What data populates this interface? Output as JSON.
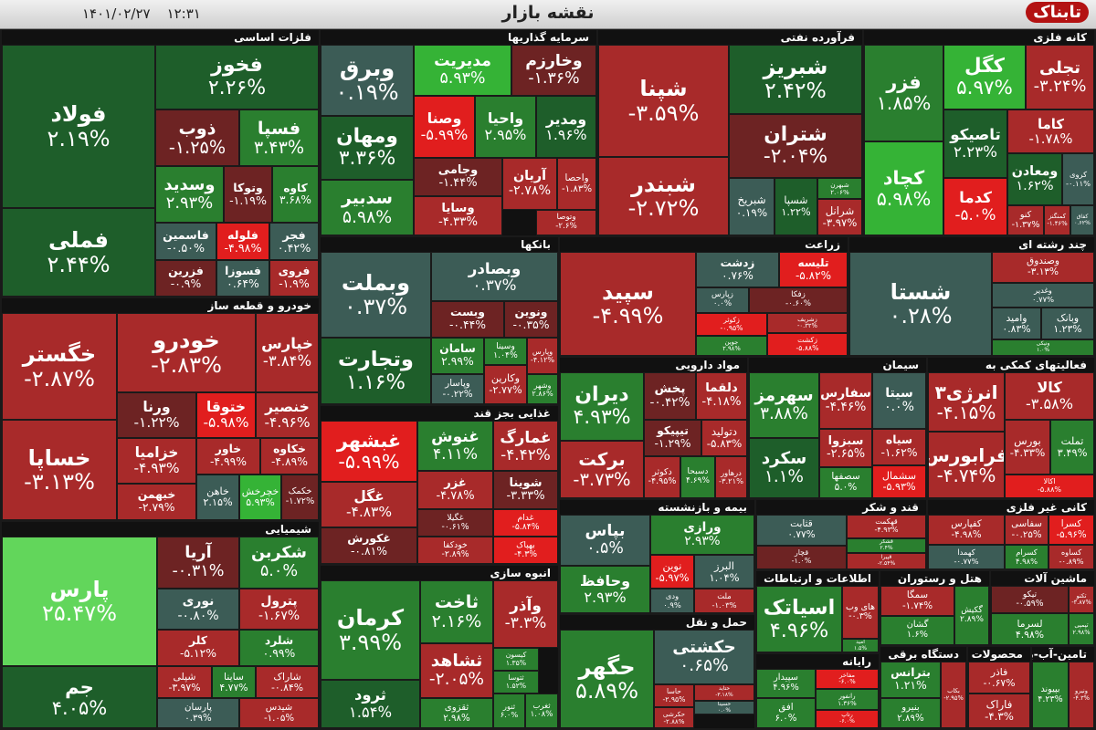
{
  "header": {
    "title": "نقشه بازار",
    "time": "۱۲:۳۱",
    "date": "۱۴۰۱/۰۲/۲۷",
    "logo": "تابناک"
  },
  "sectors": [
    {
      "name": "فلزات اساسی",
      "tiles": [
        {
          "symbol": "فولاد",
          "change": "۲.۱۹%"
        },
        {
          "symbol": "فملی",
          "change": "۲.۴۴%"
        },
        {
          "symbol": "فخوز",
          "change": "۲.۲۶%"
        },
        {
          "symbol": "ذوب",
          "change": "-۱.۲۵%"
        },
        {
          "symbol": "فسپا",
          "change": "۳.۴۳%"
        },
        {
          "symbol": "وسدید",
          "change": "۲.۹۳%"
        },
        {
          "symbol": "وتوکا",
          "change": "-۱.۱۹%"
        },
        {
          "symbol": "کاوه",
          "change": "۳.۶۸%"
        },
        {
          "symbol": "فاسمین",
          "change": "-۰.۵۰%"
        },
        {
          "symbol": "فلوله",
          "change": "-۴.۹۸%"
        },
        {
          "symbol": "فجر",
          "change": "۰.۴۲%"
        },
        {
          "symbol": "فزرین",
          "change": "-۰.۹%"
        },
        {
          "symbol": "فسوزا",
          "change": "۰.۶۴%"
        },
        {
          "symbol": "فروی",
          "change": "-۱.۹%"
        }
      ]
    },
    {
      "name": "خودرو و قطعه ساز",
      "tiles": [
        {
          "symbol": "خگستر",
          "change": "-۲.۸۷%"
        },
        {
          "symbol": "خساپا",
          "change": "-۳.۱۳%"
        },
        {
          "symbol": "خودرو",
          "change": "-۲.۸۳%"
        },
        {
          "symbol": "خپارس",
          "change": "-۳.۸۴%"
        },
        {
          "symbol": "ورنا",
          "change": "-۱.۲۲%"
        },
        {
          "symbol": "ختوقا",
          "change": "-۵.۹۸%"
        },
        {
          "symbol": "خنصیر",
          "change": "-۴.۹۶%"
        },
        {
          "symbol": "خزامیا",
          "change": "-۴.۹۳%"
        },
        {
          "symbol": "خاور",
          "change": "-۴.۹۹%"
        },
        {
          "symbol": "خکاوه",
          "change": "-۴.۸۹%"
        },
        {
          "symbol": "خبهمن",
          "change": "-۲.۷۹%"
        },
        {
          "symbol": "خاهن",
          "change": "۲.۱۵%"
        },
        {
          "symbol": "خچرخش",
          "change": "۵.۹۳%"
        },
        {
          "symbol": "خکمک",
          "change": "-۱.۷۲%"
        }
      ]
    },
    {
      "name": "شیمیایی",
      "tiles": [
        {
          "symbol": "پارس",
          "change": "۲۵.۴۷%"
        },
        {
          "symbol": "جم",
          "change": "۴.۰۵%"
        },
        {
          "symbol": "آریا",
          "change": "-۰.۳۱%"
        },
        {
          "symbol": "شکربن",
          "change": "۵.۰%"
        },
        {
          "symbol": "نوری",
          "change": "-۰.۸۰%"
        },
        {
          "symbol": "پترول",
          "change": "-۱.۶۷%"
        },
        {
          "symbol": "کلر",
          "change": "-۵.۱۲%"
        },
        {
          "symbol": "شلرد",
          "change": "۰.۹۹%"
        },
        {
          "symbol": "شپلی",
          "change": "-۳.۹۷%"
        },
        {
          "symbol": "ساینا",
          "change": "۴.۷۷%"
        },
        {
          "symbol": "شاراک",
          "change": "-۰.۸۴%"
        },
        {
          "symbol": "پارسان",
          "change": "۰.۳۹%"
        },
        {
          "symbol": "شیدس",
          "change": "-۱.۰۵%"
        }
      ]
    },
    {
      "name": "سرمایه گذاریها",
      "tiles": [
        {
          "symbol": "وبرق",
          "change": "۰.۱۹%"
        },
        {
          "symbol": "ومهان",
          "change": "۳.۳۶%"
        },
        {
          "symbol": "سدبیر",
          "change": "۵.۹۸%"
        },
        {
          "symbol": "مدیریت",
          "change": "۵.۹۳%"
        },
        {
          "symbol": "وخارزم",
          "change": "-۱.۳۶%"
        },
        {
          "symbol": "وصنا",
          "change": "-۵.۹۹%"
        },
        {
          "symbol": "واحیا",
          "change": "۲.۹۵%"
        },
        {
          "symbol": "ومدیر",
          "change": "۱.۹۶%"
        },
        {
          "symbol": "وجامی",
          "change": "-۱.۴۴%"
        },
        {
          "symbol": "آریان",
          "change": "-۲.۷۸%"
        },
        {
          "symbol": "واحصا",
          "change": "-۱.۸۳%"
        },
        {
          "symbol": "وسایا",
          "change": "-۴.۳۳%"
        },
        {
          "symbol": "وتوصا",
          "change": "-۲.۶%"
        }
      ]
    },
    {
      "name": "فرآورده نفتی",
      "tiles": [
        {
          "symbol": "شپنا",
          "change": "-۳.۵۹%"
        },
        {
          "symbol": "شبندر",
          "change": "-۲.۷۲%"
        },
        {
          "symbol": "شبریز",
          "change": "۲.۴۲%"
        },
        {
          "symbol": "شتران",
          "change": "-۲.۰۴%"
        },
        {
          "symbol": "شبریخ",
          "change": "۰.۱۹%"
        },
        {
          "symbol": "شسپا",
          "change": "۱.۲۲%"
        },
        {
          "symbol": "شبهرن",
          "change": "۲.۰۶%"
        },
        {
          "symbol": "شرانل",
          "change": "-۳.۹۷%"
        }
      ]
    },
    {
      "name": "کانه فلزی",
      "tiles": [
        {
          "symbol": "فزر",
          "change": "۱.۸۵%"
        },
        {
          "symbol": "کچاد",
          "change": "۵.۹۸%"
        },
        {
          "symbol": "کگل",
          "change": "۵.۹۷%"
        },
        {
          "symbol": "تجلی",
          "change": "-۳.۲۴%"
        },
        {
          "symbol": "تاصیکو",
          "change": "۲.۲۳%"
        },
        {
          "symbol": "کاما",
          "change": "-۱.۷۸%"
        },
        {
          "symbol": "ومعادن",
          "change": "۱.۶۲%"
        },
        {
          "symbol": "کروی",
          "change": "-۰.۱۱%"
        },
        {
          "symbol": "کدما",
          "change": "-۵.۰%"
        },
        {
          "symbol": "کنو",
          "change": "-۱.۳۷%"
        },
        {
          "symbol": "کمنگنز",
          "change": "-۱.۴۶%"
        },
        {
          "symbol": "کفاق",
          "change": "۰.۶۲%"
        }
      ]
    },
    {
      "name": "بانکها",
      "tiles": [
        {
          "symbol": "وبملت",
          "change": "۰.۳۷%"
        },
        {
          "symbol": "وتجارت",
          "change": "۱.۱۶%"
        },
        {
          "symbol": "وبصادر",
          "change": "۰.۳۷%"
        },
        {
          "symbol": "وبست",
          "change": "-۰.۴۴%"
        },
        {
          "symbol": "ونوین",
          "change": "-۰.۳۵%"
        },
        {
          "symbol": "سامان",
          "change": "۲.۹۹%"
        },
        {
          "symbol": "وسینا",
          "change": "۱.۰۴%"
        },
        {
          "symbol": "وپارس",
          "change": "-۴.۱۲%"
        },
        {
          "symbol": "وپاسار",
          "change": "-۰.۲۲%"
        },
        {
          "symbol": "وکارین",
          "change": "-۲.۷۷%"
        },
        {
          "symbol": "وشهر",
          "change": "۲.۸۶%"
        }
      ]
    },
    {
      "name": "زراعت",
      "tiles": [
        {
          "symbol": "سپید",
          "change": "-۴.۹۹%"
        },
        {
          "symbol": "زدشت",
          "change": "۰.۷۶%"
        },
        {
          "symbol": "تلیسه",
          "change": "-۵.۸۲%"
        },
        {
          "symbol": "زپارس",
          "change": "۰.۰%"
        },
        {
          "symbol": "زفکا",
          "change": "-۰.۶۰%"
        },
        {
          "symbol": "زکوثر",
          "change": "-۰.۹۵%"
        },
        {
          "symbol": "جوین",
          "change": "۲.۹۸%"
        },
        {
          "symbol": "زشریف",
          "change": "-۰.۳۲%"
        },
        {
          "symbol": "زکشت",
          "change": "-۵.۸۸%"
        }
      ]
    },
    {
      "name": "چند رشته ای",
      "tiles": [
        {
          "symbol": "شستا",
          "change": "۰.۲۸%"
        },
        {
          "symbol": "وصندوق",
          "change": "-۳.۱۳%"
        },
        {
          "symbol": "وغدیر",
          "change": "۰.۷۷%"
        },
        {
          "symbol": "وامید",
          "change": "۰.۸۳%"
        },
        {
          "symbol": "وبانک",
          "change": "۱.۲۳%"
        },
        {
          "symbol": "ونیکی",
          "change": "۱.۰%"
        }
      ]
    },
    {
      "name": "مواد دارویی",
      "tiles": [
        {
          "symbol": "دیران",
          "change": "۴.۹۳%"
        },
        {
          "symbol": "برکت",
          "change": "-۳.۷۳%"
        },
        {
          "symbol": "پخش",
          "change": "-۰.۴۲%"
        },
        {
          "symbol": "دلقما",
          "change": "-۴.۱۸%"
        },
        {
          "symbol": "تیپیکو",
          "change": "-۱.۲۹%"
        },
        {
          "symbol": "دتولید",
          "change": "-۵.۸۳%"
        },
        {
          "symbol": "دکوثر",
          "change": "-۴.۹۵%"
        },
        {
          "symbol": "دسبحا",
          "change": "۴.۶۹%"
        },
        {
          "symbol": "درهاور",
          "change": "-۳.۲۱%"
        }
      ]
    },
    {
      "name": "سیمان",
      "tiles": [
        {
          "symbol": "سهرمز",
          "change": "۳.۸۸%"
        },
        {
          "symbol": "سکرد",
          "change": "۱.۱%"
        },
        {
          "symbol": "سفارس",
          "change": "-۴.۴۶%"
        },
        {
          "symbol": "سیتا",
          "change": "۰.۰%"
        },
        {
          "symbol": "سبزوا",
          "change": "-۲.۶۵%"
        },
        {
          "symbol": "سیاه",
          "change": "-۱.۶۲%"
        },
        {
          "symbol": "سصفها",
          "change": "۵.۰%"
        },
        {
          "symbol": "سشمال",
          "change": "-۵.۹۳%"
        }
      ]
    },
    {
      "name": "فعالیتهای کمکی به",
      "tiles": [
        {
          "symbol": "انرژی۳",
          "change": "-۴.۱۵%"
        },
        {
          "symbol": "کالا",
          "change": "-۳.۵۸%"
        },
        {
          "symbol": "فرابورس",
          "change": "-۴.۷۴%"
        },
        {
          "symbol": "بورس",
          "change": "-۴.۳۳%"
        },
        {
          "symbol": "تملت",
          "change": "۳.۴۹%"
        },
        {
          "symbol": "اکالا",
          "change": "-۵.۸۸%"
        }
      ]
    },
    {
      "name": "غذایی بجز قند",
      "tiles": [
        {
          "symbol": "غبشهر",
          "change": "-۵.۹۹%"
        },
        {
          "symbol": "غگل",
          "change": "-۴.۸۳%"
        },
        {
          "symbol": "غکورش",
          "change": "-۰.۸۱%"
        },
        {
          "symbol": "غنوش",
          "change": "۴.۱۱%"
        },
        {
          "symbol": "غمارگ",
          "change": "-۴.۴۲%"
        },
        {
          "symbol": "غزر",
          "change": "-۴.۷۸%"
        },
        {
          "symbol": "شوینا",
          "change": "-۳.۳۳%"
        },
        {
          "symbol": "غگیلا",
          "change": "-۰.۶۱%"
        },
        {
          "symbol": "غدام",
          "change": "-۵.۸۴%"
        },
        {
          "symbol": "خودکفا",
          "change": "-۲.۸۹%"
        },
        {
          "symbol": "بهپاک",
          "change": "-۴.۳%"
        }
      ]
    },
    {
      "name": "انبوه سازی",
      "tiles": [
        {
          "symbol": "کرمان",
          "change": "۳.۹۹%"
        },
        {
          "symbol": "ثرود",
          "change": "۱.۵۴%"
        },
        {
          "symbol": "ثاخت",
          "change": "۲.۱۶%"
        },
        {
          "symbol": "وآذر",
          "change": "-۳.۳%"
        },
        {
          "symbol": "ثشاهد",
          "change": "-۲.۰۵%"
        },
        {
          "symbol": "کیسون",
          "change": "۱.۳۵%"
        },
        {
          "symbol": "ثتوسا",
          "change": "۱.۵۲%"
        },
        {
          "symbol": "ثقزوی",
          "change": "۲.۹۸%"
        },
        {
          "symbol": "ثنور",
          "change": "۶.۰%"
        },
        {
          "symbol": "ثغرب",
          "change": "۱.۰۸%"
        }
      ]
    },
    {
      "name": "بیمه و بازنشسته",
      "tiles": [
        {
          "symbol": "بپاس",
          "change": "۰.۵%"
        },
        {
          "symbol": "وحافظ",
          "change": "۲.۹۳%"
        },
        {
          "symbol": "ورازی",
          "change": "۲.۹۳%"
        },
        {
          "symbol": "نوین",
          "change": "-۵.۹۷%"
        },
        {
          "symbol": "البرز",
          "change": "۱.۰۴%"
        },
        {
          "symbol": "ودی",
          "change": "۰.۹%"
        },
        {
          "symbol": "ملت",
          "change": "-۱.۰۳%"
        }
      ]
    },
    {
      "name": "حمل و نقل",
      "tiles": [
        {
          "symbol": "حگهر",
          "change": "۵.۸۹%"
        },
        {
          "symbol": "حکشتی",
          "change": "۰.۶۵%"
        },
        {
          "symbol": "حاسا",
          "change": "-۲.۹۵%"
        },
        {
          "symbol": "حتاید",
          "change": "-۳.۱۸%"
        },
        {
          "symbol": "حسینا",
          "change": "۰.۰%"
        },
        {
          "symbol": "حکرشی",
          "change": "-۲.۸۸%"
        }
      ]
    },
    {
      "name": "قند و شکر",
      "tiles": [
        {
          "symbol": "قثابت",
          "change": "۰.۷۷%"
        },
        {
          "symbol": "قچار",
          "change": "-۱.۰%"
        },
        {
          "symbol": "قهکمت",
          "change": "-۴.۹۳%"
        },
        {
          "symbol": "قشکر",
          "change": "۲.۴%"
        },
        {
          "symbol": "قپیرا",
          "change": "-۲.۵۴%"
        }
      ]
    },
    {
      "name": "کانی غیر فلزی",
      "tiles": [
        {
          "symbol": "کفپارس",
          "change": "-۴.۹۸%"
        },
        {
          "symbol": "سفاسی",
          "change": "-۰.۲۵%"
        },
        {
          "symbol": "کسرا",
          "change": "-۵.۹۶%"
        },
        {
          "symbol": "کهمدا",
          "change": "-۰.۷۷%"
        },
        {
          "symbol": "کسرام",
          "change": "۴.۹۸%"
        },
        {
          "symbol": "کساوه",
          "change": "-۰.۸۹%"
        }
      ]
    },
    {
      "name": "اطلاعات و ارتباطات",
      "tiles": [
        {
          "symbol": "اسیاتک",
          "change": "۴.۹۶%"
        },
        {
          "symbol": "های وب",
          "change": "-۰.۳%"
        },
        {
          "symbol": "امید",
          "change": "۱.۵%"
        }
      ]
    },
    {
      "name": "رایانه",
      "tiles": [
        {
          "symbol": "سپیدار",
          "change": "۴.۹۶%"
        },
        {
          "symbol": "مفاخر",
          "change": "-۶.۰%"
        },
        {
          "symbol": "افق",
          "change": "۶.۰%"
        },
        {
          "symbol": "رانفور",
          "change": "۱.۳۶%"
        },
        {
          "symbol": "رتاپ",
          "change": "-۶.۰%"
        }
      ]
    },
    {
      "name": "هتل و رستوران",
      "tiles": [
        {
          "symbol": "سمگا",
          "change": "-۱.۷۴%"
        },
        {
          "symbol": "گکیش",
          "change": "۲.۸۹%"
        },
        {
          "symbol": "گشان",
          "change": "۱.۶%"
        }
      ]
    },
    {
      "name": "ماشین آلات",
      "tiles": [
        {
          "symbol": "تیکو",
          "change": "-۰.۵۹%"
        },
        {
          "symbol": "تکنو",
          "change": "-۳.۸۷%"
        },
        {
          "symbol": "لسرما",
          "change": "۴.۹۸%"
        },
        {
          "symbol": "تپمپی",
          "change": "۲.۹۸%"
        }
      ]
    },
    {
      "name": "دستگاه برقی",
      "tiles": [
        {
          "symbol": "بترانس",
          "change": "۱.۲۱%"
        },
        {
          "symbol": "بنیرو",
          "change": "۲.۸۹%"
        },
        {
          "symbol": "بکاب",
          "change": "-۲.۹۵%"
        }
      ]
    },
    {
      "name": "محصولات فلزی",
      "tiles": [
        {
          "symbol": "فاذر",
          "change": "-۰.۶۷%"
        },
        {
          "symbol": "فاراک",
          "change": "-۴.۳%"
        }
      ]
    },
    {
      "name": "تامین-آب-برق-گاز",
      "tiles": [
        {
          "symbol": "بپیوند",
          "change": "۴.۲۳%"
        },
        {
          "symbol": "ونیرو",
          "change": "-۴.۳%"
        }
      ]
    }
  ]
}
